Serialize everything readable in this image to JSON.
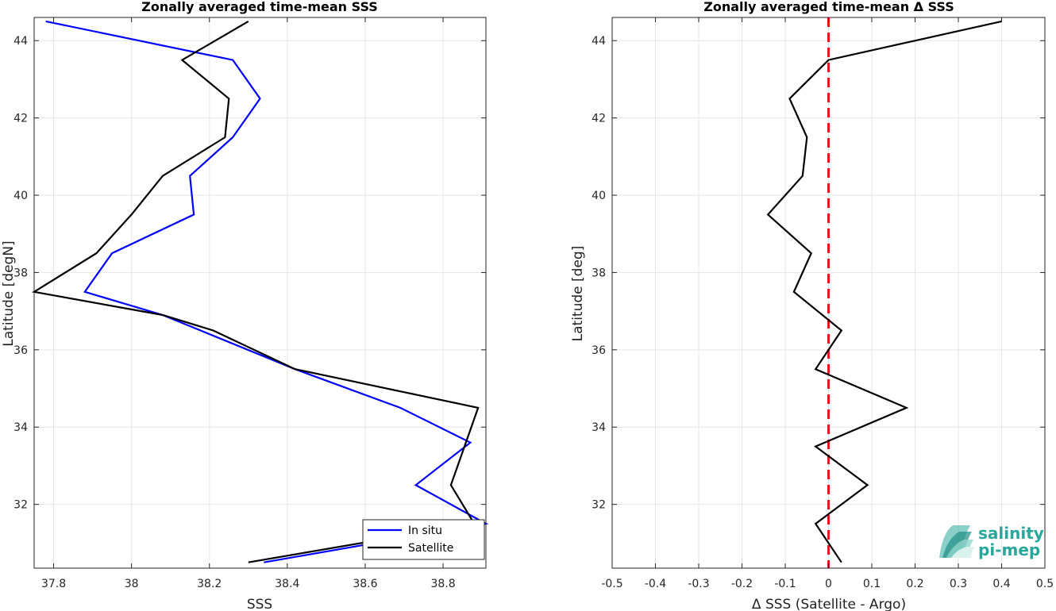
{
  "chart_data": [
    {
      "type": "line",
      "title": "Zonally averaged time-mean SSS",
      "xlabel": "SSS",
      "ylabel": "Latitude [degN]",
      "xlim": [
        37.75,
        38.91
      ],
      "ylim": [
        30.35,
        44.6
      ],
      "xticks": [
        37.8,
        38.0,
        38.2,
        38.4,
        38.6,
        38.8
      ],
      "xtick_labels": [
        "37.8",
        "38",
        "38.2",
        "38.4",
        "38.6",
        "38.8"
      ],
      "yticks": [
        32,
        34,
        36,
        38,
        40,
        42,
        44
      ],
      "ytick_labels": [
        "32",
        "34",
        "36",
        "38",
        "40",
        "42",
        "44"
      ],
      "grid": true,
      "legend": "bottom-right",
      "series": [
        {
          "name": "In situ",
          "color": "#0000ff",
          "points": [
            [
              37.78,
              44.5
            ],
            [
              38.26,
              43.5
            ],
            [
              38.33,
              42.5
            ],
            [
              38.26,
              41.5
            ],
            [
              38.15,
              40.5
            ],
            [
              38.16,
              39.5
            ],
            [
              37.95,
              38.5
            ],
            [
              37.88,
              37.5
            ],
            [
              38.08,
              36.9
            ],
            [
              38.42,
              35.5
            ],
            [
              38.69,
              34.5
            ],
            [
              38.87,
              33.6
            ],
            [
              38.73,
              32.5
            ],
            [
              38.91,
              31.5
            ],
            [
              38.34,
              30.5
            ]
          ]
        },
        {
          "name": "Satellite",
          "color": "#000000",
          "points": [
            [
              38.3,
              44.5
            ],
            [
              38.13,
              43.5
            ],
            [
              38.25,
              42.5
            ],
            [
              38.24,
              41.5
            ],
            [
              38.08,
              40.5
            ],
            [
              38.0,
              39.5
            ],
            [
              37.91,
              38.5
            ],
            [
              37.75,
              37.5
            ],
            [
              38.08,
              36.9
            ],
            [
              38.21,
              36.5
            ],
            [
              38.42,
              35.5
            ],
            [
              38.89,
              34.5
            ],
            [
              38.82,
              32.5
            ],
            [
              38.88,
              31.5
            ],
            [
              38.3,
              30.5
            ]
          ]
        }
      ]
    },
    {
      "type": "line",
      "title": "Zonally averaged time-mean Δ SSS",
      "xlabel": "Δ SSS (Satellite - Argo)",
      "ylabel": "Latitude [deg]",
      "xlim": [
        -0.5,
        0.5
      ],
      "ylim": [
        30.35,
        44.6
      ],
      "xticks": [
        -0.5,
        -0.4,
        -0.3,
        -0.2,
        -0.1,
        0,
        0.1,
        0.2,
        0.3,
        0.4,
        0.5
      ],
      "xtick_labels": [
        "-0.5",
        "-0.4",
        "-0.3",
        "-0.2",
        "-0.1",
        "0",
        "0.1",
        "0.2",
        "0.3",
        "0.4",
        "0.5"
      ],
      "yticks": [
        32,
        34,
        36,
        38,
        40,
        42,
        44
      ],
      "ytick_labels": [
        "32",
        "34",
        "36",
        "38",
        "40",
        "42",
        "44"
      ],
      "grid": true,
      "reference_line": {
        "x": 0,
        "color": "#e41a1c",
        "style": "dashed"
      },
      "series": [
        {
          "color": "#000000",
          "points": [
            [
              0.4,
              44.5
            ],
            [
              0.0,
              43.5
            ],
            [
              -0.09,
              42.5
            ],
            [
              -0.05,
              41.5
            ],
            [
              -0.06,
              40.5
            ],
            [
              -0.14,
              39.5
            ],
            [
              -0.04,
              38.5
            ],
            [
              -0.08,
              37.5
            ],
            [
              0.03,
              36.5
            ],
            [
              -0.03,
              35.5
            ],
            [
              0.18,
              34.5
            ],
            [
              -0.03,
              33.5
            ],
            [
              0.09,
              32.5
            ],
            [
              -0.03,
              31.5
            ],
            [
              0.03,
              30.5
            ]
          ]
        }
      ]
    }
  ],
  "logo": {
    "line1": "salinity",
    "line2": "pi-mep",
    "color": "#2aa79b"
  }
}
